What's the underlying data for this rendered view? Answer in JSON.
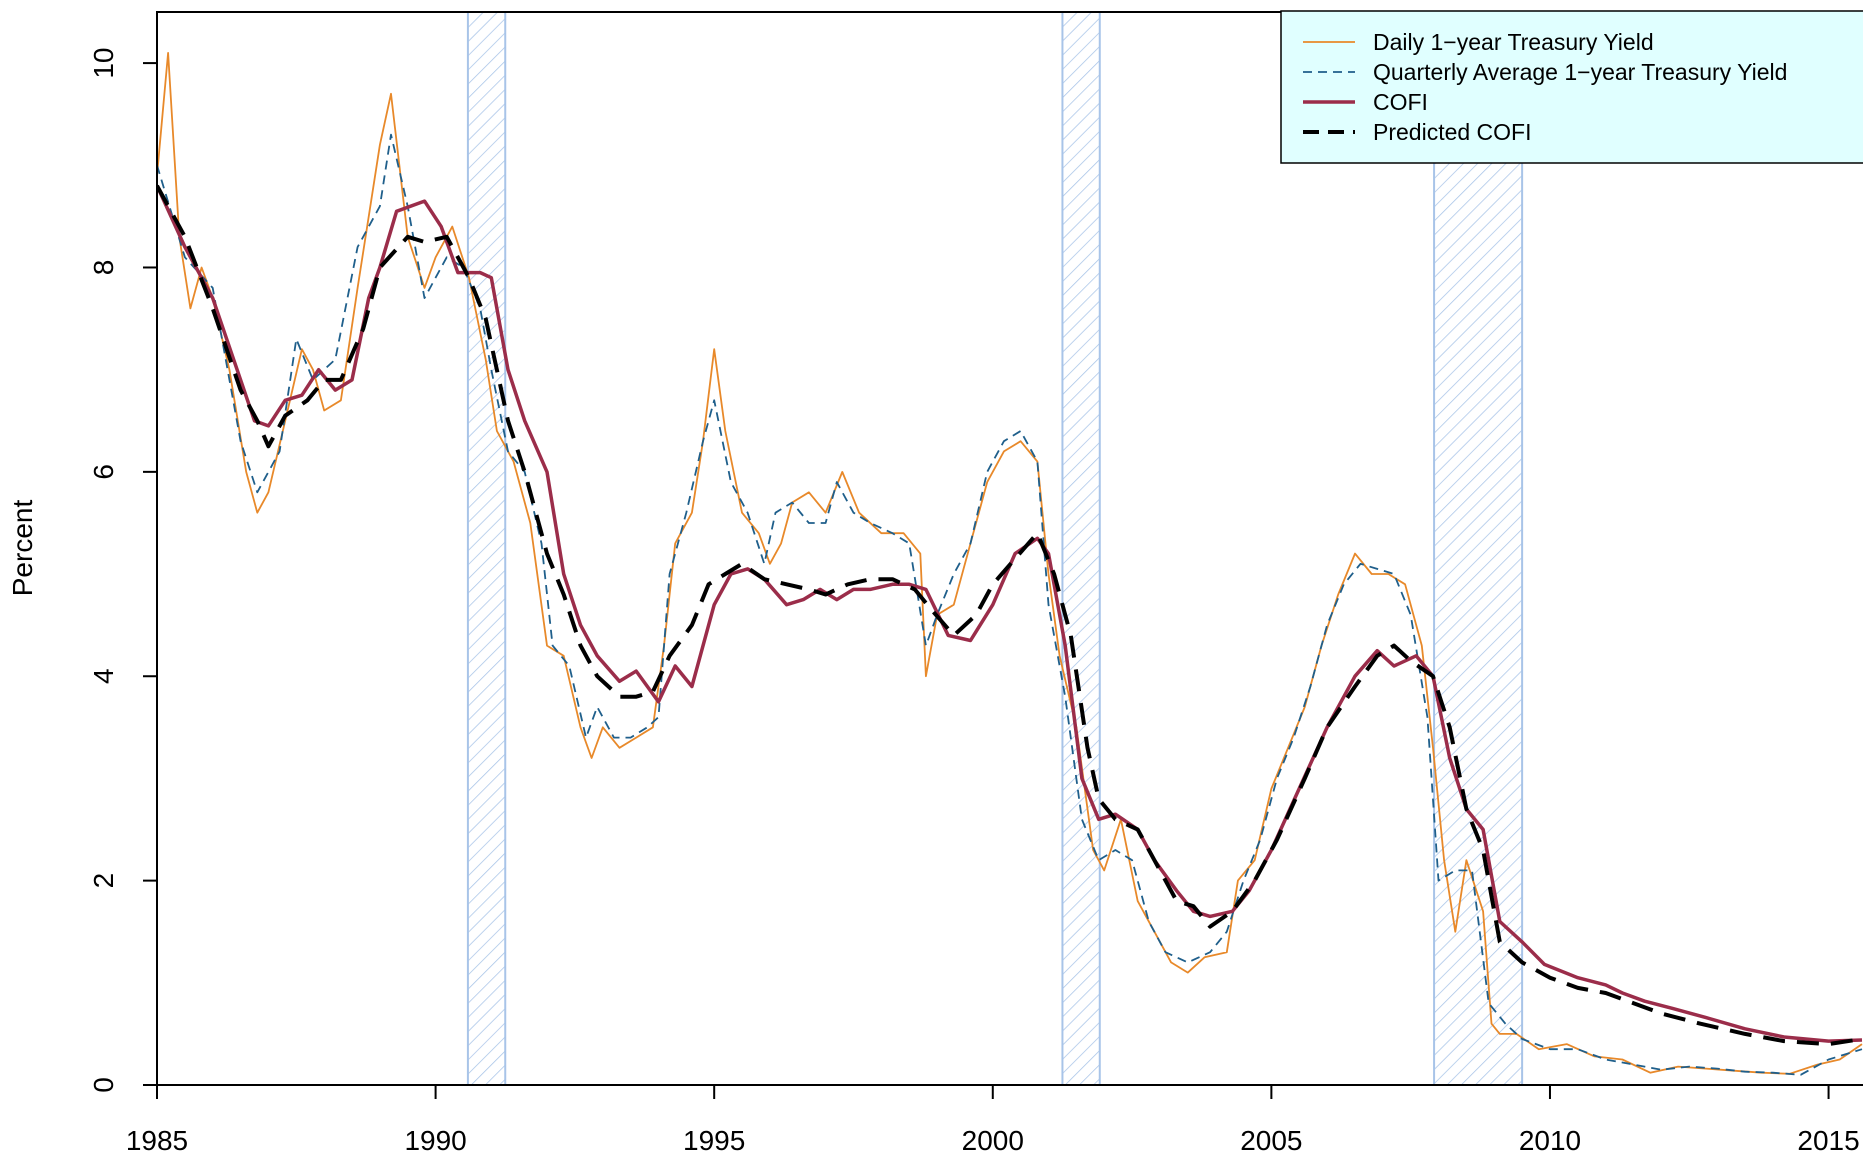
{
  "chart_data": {
    "type": "line",
    "y_label": "Percent",
    "xlim": [
      1985,
      2015.6
    ],
    "ylim": [
      0,
      10.5
    ],
    "xticks": [
      1985,
      1990,
      1995,
      2000,
      2005,
      2010,
      2015
    ],
    "yticks": [
      0,
      2,
      4,
      6,
      8,
      10
    ],
    "recessions": [
      [
        1990.58,
        1991.25
      ],
      [
        2001.25,
        2001.92
      ],
      [
        2007.92,
        2009.5
      ]
    ],
    "recession_color": "#a8c4e8",
    "legend": "top-right",
    "legend_fill": "#e0ffff",
    "series": [
      {
        "name": "Daily 1−year Treasury Yield",
        "color": "#e8892a",
        "style": "solid",
        "width": 1.8,
        "x": [
          1985.0,
          1985.2,
          1985.4,
          1985.6,
          1985.8,
          1986.0,
          1986.3,
          1986.6,
          1986.8,
          1987.0,
          1987.3,
          1987.6,
          1987.8,
          1988.0,
          1988.3,
          1988.6,
          1989.0,
          1989.2,
          1989.5,
          1989.8,
          1990.0,
          1990.3,
          1990.6,
          1990.9,
          1991.1,
          1991.4,
          1991.7,
          1992.0,
          1992.3,
          1992.6,
          1992.8,
          1993.0,
          1993.3,
          1993.6,
          1993.9,
          1994.1,
          1994.3,
          1994.6,
          1994.8,
          1995.0,
          1995.2,
          1995.5,
          1995.8,
          1996.0,
          1996.2,
          1996.4,
          1996.7,
          1997.0,
          1997.3,
          1997.6,
          1998.0,
          1998.4,
          1998.7,
          1998.8,
          1999.0,
          1999.3,
          1999.6,
          1999.9,
          2000.2,
          2000.5,
          2000.8,
          2001.0,
          2001.2,
          2001.5,
          2001.8,
          2002.0,
          2002.3,
          2002.6,
          2002.9,
          2003.2,
          2003.5,
          2003.8,
          2004.2,
          2004.4,
          2004.7,
          2005.0,
          2005.3,
          2005.6,
          2005.9,
          2006.2,
          2006.5,
          2006.8,
          2007.1,
          2007.4,
          2007.7,
          2007.9,
          2008.1,
          2008.3,
          2008.5,
          2008.8,
          2008.95,
          2009.1,
          2009.4,
          2009.8,
          2010.3,
          2010.8,
          2011.3,
          2011.8,
          2012.3,
          2012.8,
          2013.3,
          2013.8,
          2014.3,
          2014.8,
          2015.2,
          2015.6
        ],
        "values": [
          8.9,
          10.1,
          8.3,
          7.6,
          8.0,
          7.7,
          7.0,
          6.0,
          5.6,
          5.8,
          6.5,
          7.2,
          7.0,
          6.6,
          6.7,
          7.8,
          9.2,
          9.7,
          8.3,
          7.8,
          8.1,
          8.4,
          7.9,
          7.1,
          6.4,
          6.1,
          5.5,
          4.3,
          4.2,
          3.5,
          3.2,
          3.5,
          3.3,
          3.4,
          3.5,
          4.3,
          5.3,
          5.6,
          6.3,
          7.2,
          6.4,
          5.6,
          5.4,
          5.1,
          5.3,
          5.7,
          5.8,
          5.6,
          6.0,
          5.6,
          5.4,
          5.4,
          5.2,
          4.0,
          4.6,
          4.7,
          5.3,
          5.9,
          6.2,
          6.3,
          6.1,
          5.0,
          4.2,
          3.5,
          2.3,
          2.1,
          2.6,
          1.8,
          1.5,
          1.2,
          1.1,
          1.25,
          1.3,
          2.0,
          2.2,
          2.9,
          3.3,
          3.7,
          4.3,
          4.8,
          5.2,
          5.0,
          5.0,
          4.9,
          4.3,
          3.3,
          2.2,
          1.5,
          2.2,
          1.7,
          0.6,
          0.5,
          0.5,
          0.35,
          0.4,
          0.28,
          0.25,
          0.12,
          0.18,
          0.16,
          0.14,
          0.12,
          0.11,
          0.2,
          0.25,
          0.4
        ]
      },
      {
        "name": "Quarterly Average 1−year Treasury Yield",
        "color": "#1f5f8b",
        "style": "dashed",
        "width": 1.8,
        "x": [
          1985.0,
          1985.5,
          1986.0,
          1986.5,
          1986.8,
          1987.2,
          1987.5,
          1987.8,
          1988.2,
          1988.6,
          1989.0,
          1989.2,
          1989.5,
          1989.8,
          1990.2,
          1990.5,
          1990.8,
          1991.0,
          1991.3,
          1991.6,
          1991.9,
          1992.1,
          1992.4,
          1992.7,
          1992.9,
          1993.2,
          1993.5,
          1993.8,
          1994.0,
          1994.2,
          1994.5,
          1994.8,
          1995.0,
          1995.3,
          1995.6,
          1995.9,
          1996.1,
          1996.4,
          1996.7,
          1997.0,
          1997.2,
          1997.5,
          1997.8,
          1998.2,
          1998.5,
          1998.8,
          1999.0,
          1999.3,
          1999.6,
          1999.9,
          2000.2,
          2000.5,
          2000.8,
          2001.0,
          2001.3,
          2001.6,
          2001.9,
          2002.2,
          2002.5,
          2002.8,
          2003.1,
          2003.5,
          2003.9,
          2004.2,
          2004.5,
          2004.8,
          2005.1,
          2005.4,
          2005.7,
          2006.0,
          2006.3,
          2006.6,
          2006.9,
          2007.2,
          2007.5,
          2007.8,
          2008.0,
          2008.3,
          2008.6,
          2008.9,
          2009.2,
          2009.5,
          2010.0,
          2010.5,
          2011.0,
          2011.5,
          2012.0,
          2012.5,
          2013.0,
          2013.5,
          2014.0,
          2014.5,
          2015.0,
          2015.6
        ],
        "values": [
          9.0,
          8.1,
          7.8,
          6.3,
          5.8,
          6.2,
          7.3,
          6.9,
          7.1,
          8.2,
          8.6,
          9.3,
          8.6,
          7.7,
          8.1,
          8.0,
          7.6,
          7.0,
          6.2,
          6.0,
          5.3,
          4.3,
          4.1,
          3.4,
          3.7,
          3.4,
          3.4,
          3.5,
          3.6,
          5.0,
          5.6,
          6.3,
          6.7,
          5.9,
          5.6,
          5.1,
          5.6,
          5.7,
          5.5,
          5.5,
          5.9,
          5.6,
          5.5,
          5.4,
          5.3,
          4.3,
          4.6,
          5.0,
          5.3,
          6.0,
          6.3,
          6.4,
          6.1,
          4.7,
          3.8,
          2.6,
          2.2,
          2.3,
          2.2,
          1.6,
          1.3,
          1.2,
          1.3,
          1.5,
          2.0,
          2.4,
          3.0,
          3.4,
          3.9,
          4.5,
          4.9,
          5.1,
          5.05,
          5.0,
          4.6,
          3.6,
          2.0,
          2.1,
          2.1,
          0.8,
          0.6,
          0.45,
          0.35,
          0.35,
          0.25,
          0.2,
          0.15,
          0.18,
          0.16,
          0.13,
          0.12,
          0.1,
          0.25,
          0.35
        ]
      },
      {
        "name": "COFI",
        "color": "#9b2d4a",
        "style": "solid",
        "width": 3.5,
        "x": [
          1985.0,
          1985.5,
          1986.0,
          1986.5,
          1986.75,
          1987.0,
          1987.3,
          1987.6,
          1987.9,
          1988.2,
          1988.5,
          1988.8,
          1989.0,
          1989.3,
          1989.8,
          1990.1,
          1990.4,
          1990.8,
          1991.0,
          1991.3,
          1991.6,
          1992.0,
          1992.3,
          1992.6,
          1992.9,
          1993.3,
          1993.6,
          1994.0,
          1994.3,
          1994.6,
          1995.0,
          1995.3,
          1995.6,
          1995.9,
          1996.3,
          1996.6,
          1996.9,
          1997.2,
          1997.5,
          1997.8,
          1998.2,
          1998.5,
          1998.8,
          1999.2,
          1999.6,
          2000.0,
          2000.4,
          2000.8,
          2001.0,
          2001.3,
          2001.6,
          2001.9,
          2002.2,
          2002.6,
          2002.9,
          2003.3,
          2003.6,
          2003.9,
          2004.3,
          2004.6,
          2005.0,
          2005.5,
          2006.0,
          2006.5,
          2006.9,
          2007.2,
          2007.6,
          2007.9,
          2008.2,
          2008.5,
          2008.8,
          2009.1,
          2009.5,
          2009.9,
          2010.5,
          2011.0,
          2011.3,
          2011.7,
          2012.2,
          2012.8,
          2013.5,
          2014.2,
          2015.0,
          2015.6
        ],
        "values": [
          8.8,
          8.2,
          7.7,
          6.9,
          6.5,
          6.45,
          6.7,
          6.75,
          7.0,
          6.8,
          6.9,
          7.7,
          8.0,
          8.55,
          8.65,
          8.4,
          7.95,
          7.95,
          7.9,
          7.0,
          6.5,
          6.0,
          5.0,
          4.5,
          4.2,
          3.95,
          4.05,
          3.75,
          4.1,
          3.9,
          4.7,
          5.0,
          5.05,
          4.95,
          4.7,
          4.75,
          4.85,
          4.75,
          4.85,
          4.85,
          4.9,
          4.9,
          4.85,
          4.4,
          4.35,
          4.7,
          5.2,
          5.35,
          5.2,
          4.3,
          3.0,
          2.6,
          2.65,
          2.5,
          2.2,
          1.9,
          1.7,
          1.65,
          1.7,
          1.9,
          2.3,
          2.9,
          3.5,
          4.0,
          4.25,
          4.1,
          4.2,
          4.0,
          3.2,
          2.7,
          2.5,
          1.6,
          1.4,
          1.18,
          1.05,
          0.98,
          0.9,
          0.82,
          0.75,
          0.66,
          0.55,
          0.47,
          0.43,
          0.44
        ]
      },
      {
        "name": "Predicted COFI",
        "color": "#000000",
        "style": "longdash",
        "width": 4,
        "x": [
          1985.0,
          1985.5,
          1986.0,
          1986.5,
          1986.8,
          1987.0,
          1987.3,
          1987.7,
          1988.0,
          1988.3,
          1988.7,
          1989.0,
          1989.5,
          1989.8,
          1990.2,
          1990.6,
          1990.9,
          1991.3,
          1991.6,
          1992.0,
          1992.3,
          1992.6,
          1992.9,
          1993.3,
          1993.6,
          1993.9,
          1994.2,
          1994.6,
          1994.9,
          1995.2,
          1995.5,
          1995.9,
          1996.3,
          1996.7,
          1997.0,
          1997.4,
          1997.8,
          1998.2,
          1998.6,
          1998.9,
          1999.3,
          1999.7,
          2000.0,
          2000.4,
          2000.8,
          2001.1,
          2001.4,
          2001.7,
          2001.9,
          2002.2,
          2002.6,
          2002.9,
          2003.3,
          2003.6,
          2003.9,
          2004.3,
          2004.7,
          2005.1,
          2005.6,
          2006.0,
          2006.5,
          2006.9,
          2007.2,
          2007.5,
          2007.9,
          2008.2,
          2008.5,
          2008.8,
          2009.1,
          2009.5,
          2010.0,
          2010.5,
          2011.0,
          2011.5,
          2012.0,
          2012.7,
          2013.5,
          2014.2,
          2015.0,
          2015.6
        ],
        "values": [
          8.8,
          8.3,
          7.6,
          6.8,
          6.5,
          6.25,
          6.55,
          6.7,
          6.9,
          6.9,
          7.4,
          8.0,
          8.3,
          8.25,
          8.3,
          7.9,
          7.5,
          6.5,
          6.0,
          5.2,
          4.8,
          4.3,
          4.0,
          3.8,
          3.8,
          3.85,
          4.2,
          4.5,
          4.9,
          5.0,
          5.1,
          4.95,
          4.9,
          4.85,
          4.8,
          4.9,
          4.95,
          4.95,
          4.85,
          4.65,
          4.4,
          4.6,
          4.9,
          5.15,
          5.4,
          5.0,
          4.4,
          3.3,
          2.8,
          2.6,
          2.5,
          2.2,
          1.8,
          1.75,
          1.55,
          1.7,
          2.0,
          2.4,
          3.0,
          3.5,
          3.9,
          4.2,
          4.3,
          4.15,
          4.0,
          3.5,
          2.7,
          2.3,
          1.4,
          1.2,
          1.05,
          0.95,
          0.9,
          0.8,
          0.7,
          0.6,
          0.5,
          0.43,
          0.4,
          0.45
        ]
      }
    ]
  }
}
